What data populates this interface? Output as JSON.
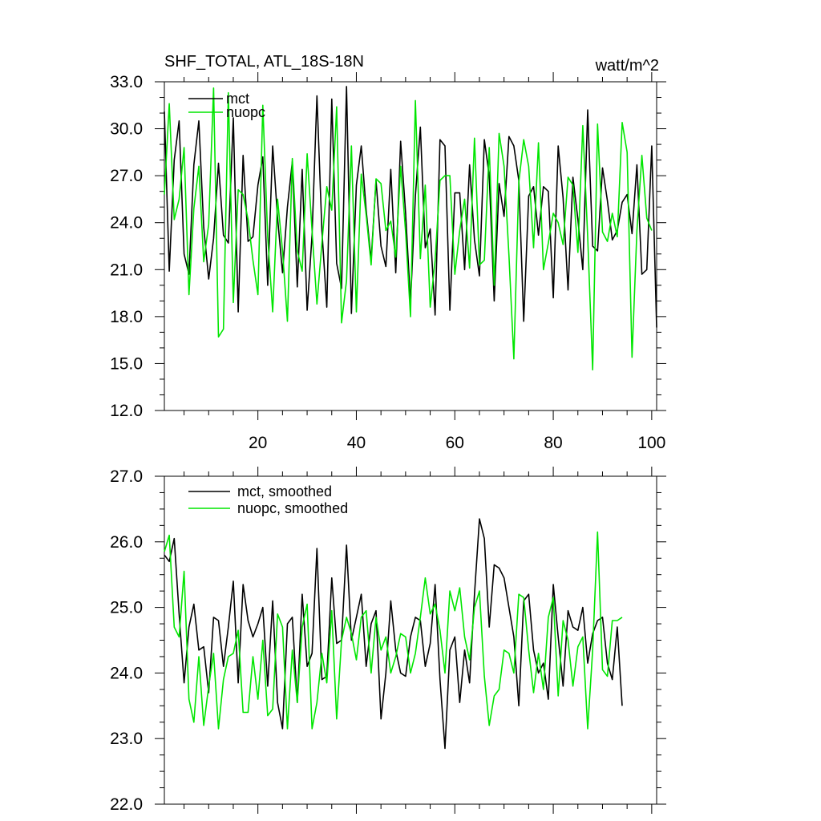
{
  "chart_data": [
    {
      "type": "line",
      "title": "SHF_TOTAL, ATL_18S-18N",
      "unit_label": "watt/m^2",
      "xlim": [
        1,
        101
      ],
      "ylim": [
        12.0,
        33.0
      ],
      "ytick_labels": [
        "12.0",
        "15.0",
        "18.0",
        "21.0",
        "24.0",
        "27.0",
        "30.0",
        "33.0"
      ],
      "xtick_labels": [
        "20",
        "40",
        "60",
        "80",
        "100"
      ],
      "grid": false,
      "legend_position": "top-left",
      "series": [
        {
          "name": "mct",
          "color": "#000000",
          "values": [
            31.1,
            20.9,
            28.0,
            30.5,
            22.0,
            20.7,
            27.7,
            30.5,
            23.7,
            20.4,
            23.0,
            27.8,
            23.2,
            22.7,
            30.7,
            18.3,
            28.3,
            22.8,
            23.1,
            26.4,
            28.2,
            20.0,
            28.9,
            24.3,
            20.8,
            25.0,
            27.9,
            19.9,
            27.4,
            18.4,
            23.2,
            32.1,
            23.5,
            18.6,
            31.9,
            21.4,
            19.8,
            32.7,
            18.2,
            26.4,
            28.9,
            24.8,
            21.6,
            26.7,
            22.5,
            21.2,
            27.4,
            20.8,
            29.2,
            24.6,
            18.9,
            25.7,
            30.1,
            22.4,
            23.6,
            18.1,
            29.3,
            28.9,
            18.4,
            25.9,
            25.9,
            21.0,
            27.7,
            22.9,
            20.6,
            29.3,
            27.0,
            19.0,
            26.5,
            24.4,
            29.5,
            28.9,
            26.7,
            17.7,
            25.7,
            26.3,
            23.2,
            26.3,
            26.0,
            19.2,
            28.9,
            25.6,
            19.7,
            26.9,
            24.2,
            21.0,
            31.2,
            22.5,
            22.2,
            27.5,
            25.4,
            22.9,
            23.5,
            25.3,
            25.8,
            23.3,
            27.7,
            20.7,
            21.0,
            28.9,
            17.3
          ]
        },
        {
          "name": "nuopc",
          "color": "#00e600",
          "values": [
            25.8,
            31.6,
            24.2,
            25.5,
            28.8,
            19.4,
            24.9,
            27.6,
            21.5,
            23.9,
            32.6,
            16.7,
            17.2,
            32.3,
            18.9,
            26.1,
            25.8,
            24.2,
            21.6,
            19.4,
            31.5,
            23.1,
            18.3,
            25.5,
            22.2,
            17.7,
            28.1,
            22.2,
            20.9,
            28.4,
            23.5,
            18.8,
            22.7,
            26.3,
            24.8,
            31.4,
            17.6,
            20.3,
            28.9,
            18.3,
            27.1,
            24.5,
            21.3,
            26.8,
            26.5,
            23.5,
            24.1,
            21.8,
            27.6,
            23.4,
            18.0,
            31.8,
            21.7,
            26.4,
            18.6,
            21.6,
            26.7,
            27.0,
            27.0,
            20.7,
            23.5,
            25.5,
            21.1,
            29.4,
            21.3,
            21.6,
            28.8,
            20.0,
            29.7,
            27.6,
            21.9,
            15.3,
            26.6,
            29.3,
            27.6,
            22.4,
            29.1,
            21.0,
            22.7,
            24.6,
            24.0,
            22.6,
            26.9,
            26.4,
            22.1,
            30.2,
            23.1,
            14.6,
            30.3,
            23.4,
            22.8,
            24.6,
            23.1,
            30.4,
            28.5,
            15.4,
            23.5,
            28.3,
            24.3,
            23.5
          ]
        }
      ]
    },
    {
      "type": "line",
      "title": "",
      "xlim": [
        1,
        101
      ],
      "ylim": [
        22.0,
        27.0
      ],
      "ytick_labels": [
        "22.0",
        "23.0",
        "24.0",
        "25.0",
        "26.0",
        "27.0"
      ],
      "xtick_labels": [],
      "grid": false,
      "legend_position": "top-left",
      "series": [
        {
          "name": "mct, smoothed",
          "color": "#000000",
          "values": [
            25.8,
            25.7,
            26.05,
            24.9,
            23.85,
            24.7,
            25.05,
            24.35,
            24.4,
            23.7,
            24.85,
            24.8,
            24.1,
            24.7,
            25.4,
            23.85,
            25.35,
            24.8,
            24.55,
            24.75,
            25.0,
            23.8,
            25.1,
            23.55,
            23.15,
            24.75,
            24.85,
            23.55,
            25.2,
            24.1,
            24.3,
            25.9,
            23.9,
            23.95,
            25.45,
            24.45,
            24.5,
            25.95,
            24.5,
            24.85,
            25.2,
            24.1,
            24.75,
            24.95,
            23.3,
            24.0,
            25.1,
            24.35,
            24.0,
            23.95,
            24.55,
            24.85,
            24.8,
            24.1,
            24.45,
            25.35,
            23.9,
            22.85,
            24.35,
            24.55,
            23.55,
            24.35,
            23.85,
            25.2,
            26.35,
            26.05,
            24.7,
            25.65,
            25.6,
            25.45,
            25.0,
            24.55,
            23.5,
            25.1,
            25.2,
            24.35,
            24.0,
            24.15,
            23.6,
            25.35,
            24.55,
            23.8,
            24.95,
            24.7,
            24.65,
            25.0,
            24.15,
            24.6,
            24.8,
            24.85,
            24.15,
            23.9,
            24.7,
            23.5
          ]
        },
        {
          "name": "nuopc, smoothed",
          "color": "#00e600",
          "values": [
            25.85,
            26.1,
            24.7,
            24.55,
            25.55,
            23.6,
            23.25,
            24.25,
            23.2,
            23.8,
            24.3,
            23.15,
            23.9,
            24.25,
            24.3,
            24.65,
            23.4,
            23.4,
            24.25,
            23.6,
            24.5,
            23.35,
            23.45,
            24.9,
            24.7,
            23.15,
            24.35,
            23.55,
            24.7,
            25.05,
            23.15,
            23.55,
            24.3,
            23.85,
            24.95,
            23.3,
            24.5,
            24.85,
            24.6,
            24.2,
            24.85,
            24.95,
            24.0,
            24.85,
            24.35,
            24.55,
            24.0,
            24.25,
            24.6,
            24.55,
            24.0,
            24.3,
            24.85,
            25.45,
            24.9,
            25.05,
            24.65,
            24.0,
            25.25,
            24.95,
            25.3,
            24.55,
            24.2,
            25.0,
            25.25,
            23.95,
            23.2,
            23.65,
            23.75,
            24.35,
            24.3,
            24.0,
            25.2,
            25.15,
            24.35,
            23.7,
            24.3,
            23.75,
            24.85,
            25.15,
            23.65,
            24.8,
            24.5,
            23.8,
            24.4,
            24.55,
            23.15,
            24.35,
            26.15,
            24.05,
            23.95,
            24.8,
            24.8,
            24.85
          ]
        }
      ]
    }
  ]
}
